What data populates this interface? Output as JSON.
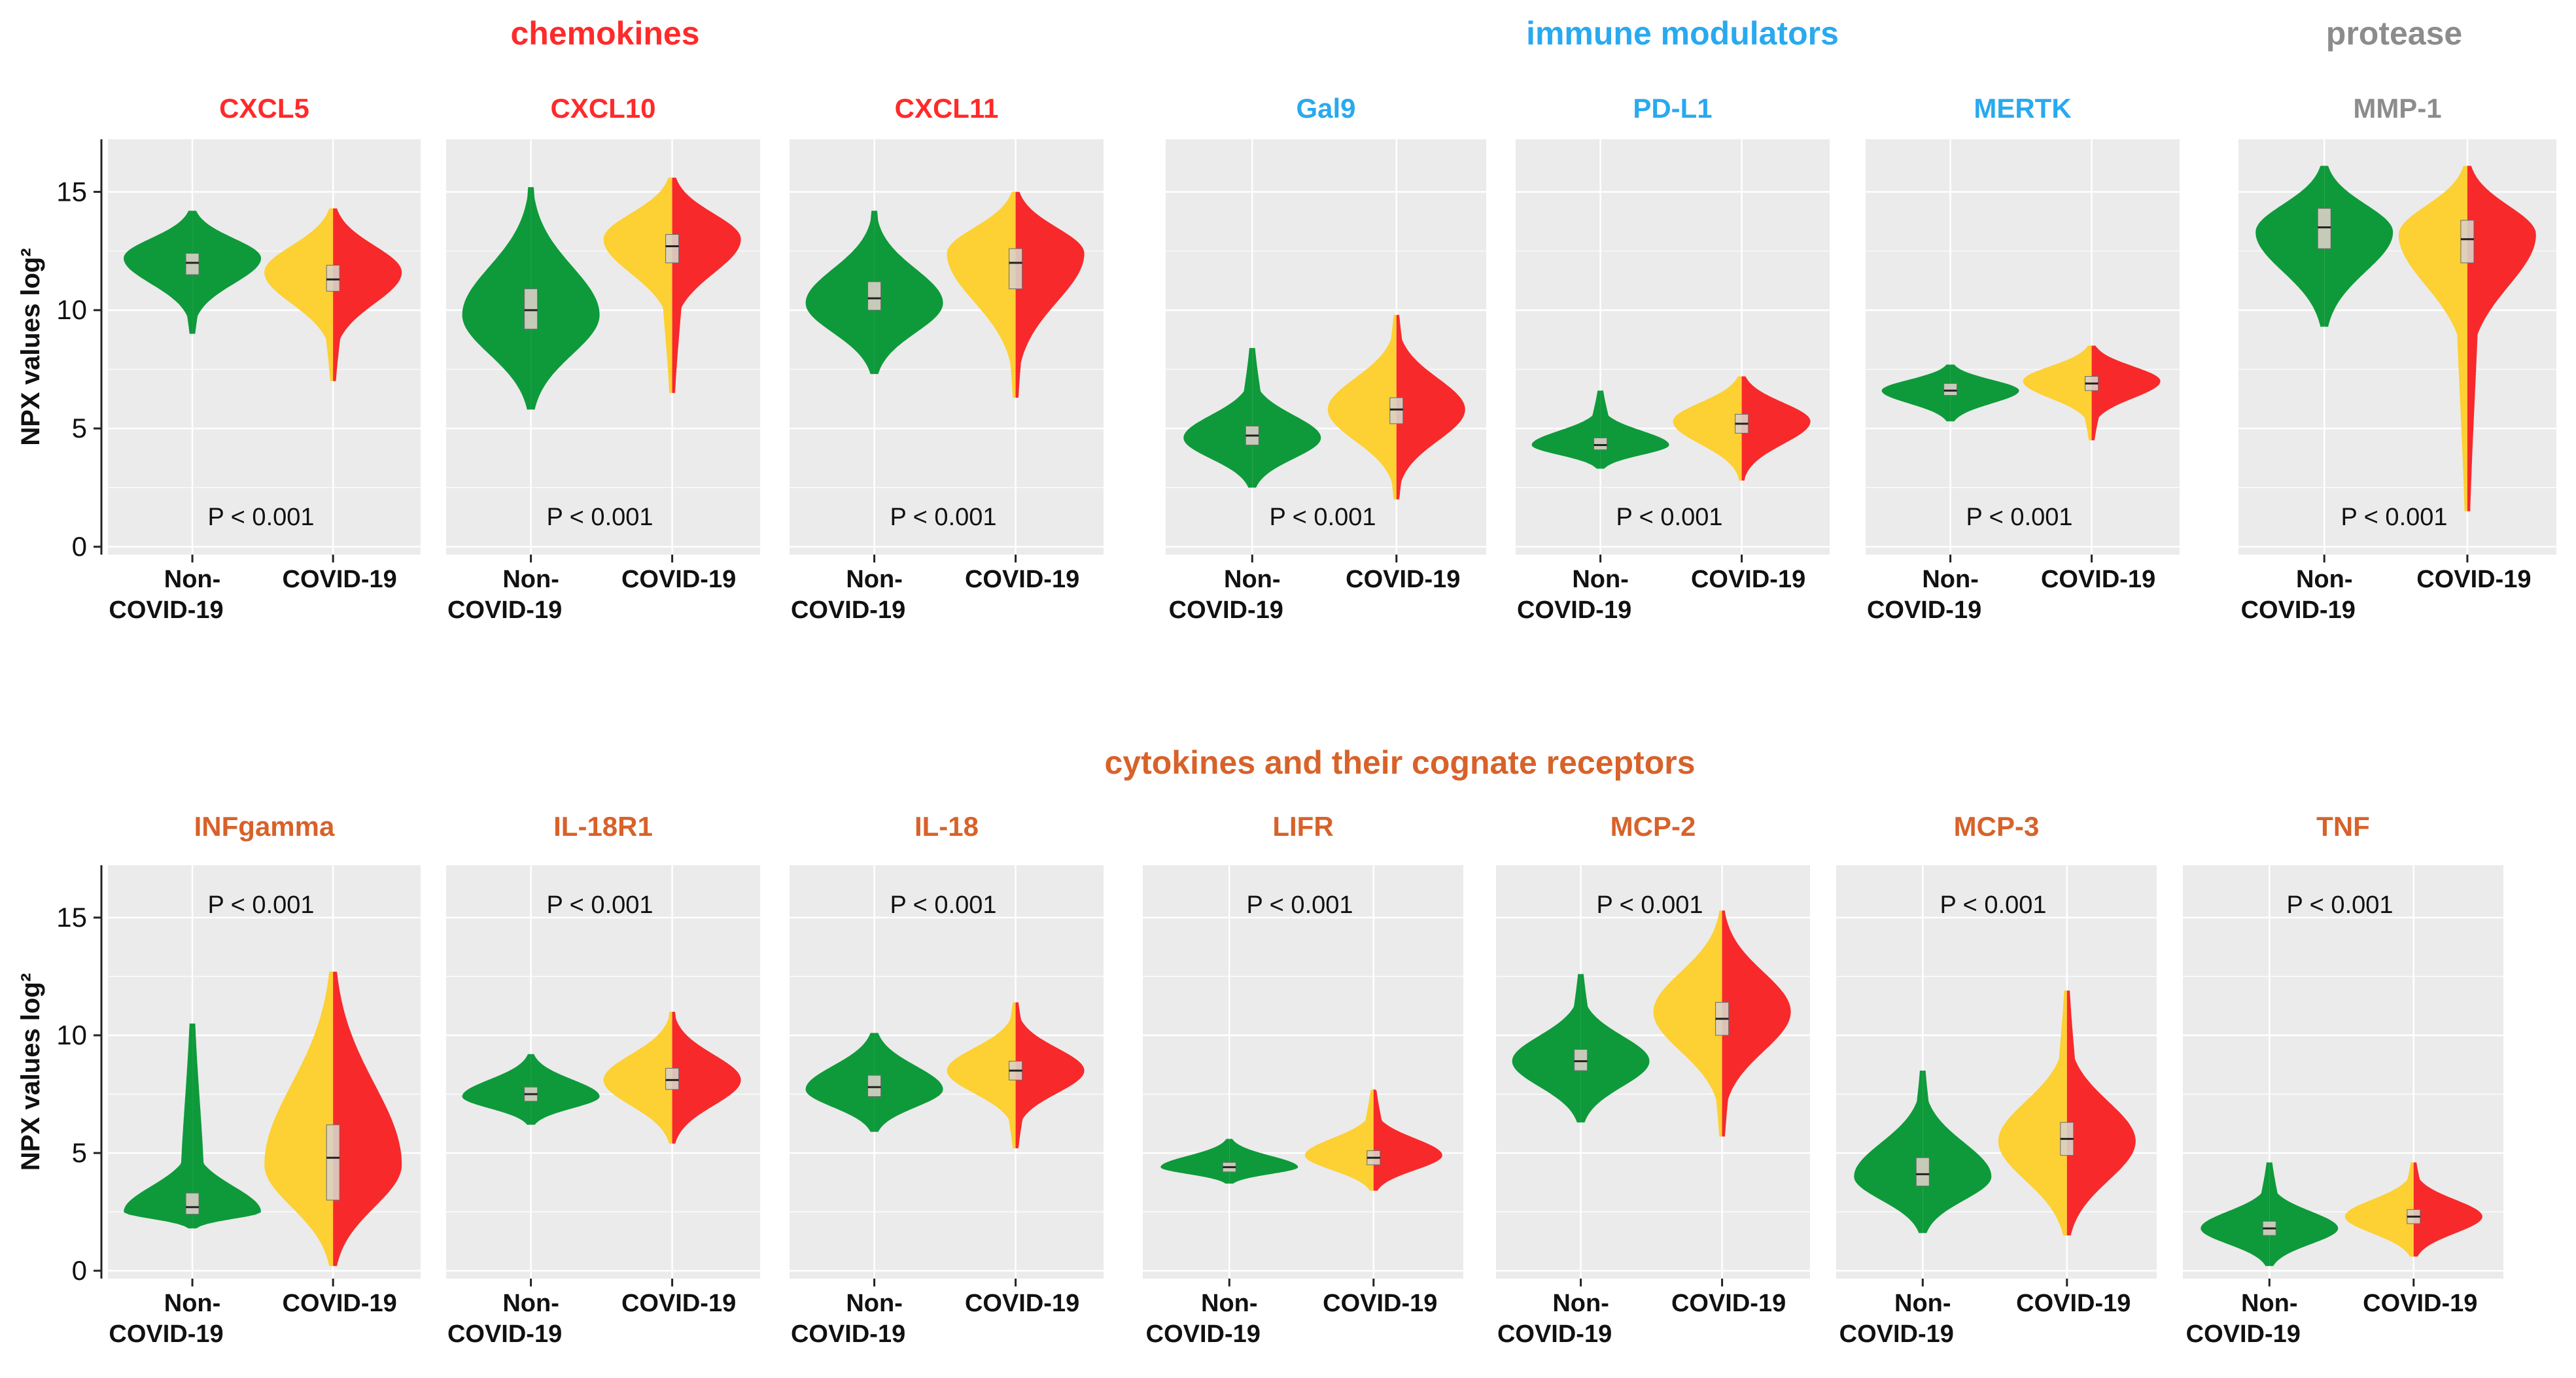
{
  "colors": {
    "non_covid": "#0e9a3a",
    "covid_left": "#fdd033",
    "covid_right": "#f7292b",
    "panel_bg": "#ebebeb",
    "chemokines": "#ff2a2a",
    "immune": "#29a9ef",
    "protease": "#8c8c8c",
    "cytokines": "#d7622a"
  },
  "groups": [
    {
      "key": "chemokines",
      "label": "chemokines",
      "color": "#ff2a2a"
    },
    {
      "key": "immune",
      "label": "immune modulators",
      "color": "#29a9ef"
    },
    {
      "key": "protease",
      "label": "protease",
      "color": "#8c8c8c"
    },
    {
      "key": "cytokines",
      "label": "cytokines and their cognate receptors",
      "color": "#d7622a"
    }
  ],
  "ylabel": "NPX values log²",
  "y_ticks": [
    "0",
    "5",
    "10",
    "15"
  ],
  "x_categories": {
    "non_covid_line1": "Non-",
    "non_covid_line2": "COVID-19",
    "covid": "COVID-19"
  },
  "chart_data": {
    "type": "violin",
    "ylabel": "NPX values log²",
    "ylim": [
      0,
      17
    ],
    "categories": [
      "Non-COVID-19",
      "COVID-19"
    ],
    "panels": [
      {
        "title": "CXCL5",
        "group": "chemokines",
        "pvalue": "P < 0.001",
        "non_covid": {
          "median": 12.0,
          "q1": 11.5,
          "q3": 12.4,
          "min": 9.0,
          "max": 14.2,
          "mode": 12.2
        },
        "covid": {
          "median": 11.3,
          "q1": 10.8,
          "q3": 11.9,
          "min": 7.0,
          "max": 14.3,
          "mode": 11.6
        }
      },
      {
        "title": "CXCL10",
        "group": "chemokines",
        "pvalue": "P < 0.001",
        "non_covid": {
          "median": 10.0,
          "q1": 9.2,
          "q3": 10.9,
          "min": 5.8,
          "max": 15.2,
          "mode": 9.8
        },
        "covid": {
          "median": 12.7,
          "q1": 12.0,
          "q3": 13.2,
          "min": 6.5,
          "max": 15.6,
          "mode": 13.0
        }
      },
      {
        "title": "CXCL11",
        "group": "chemokines",
        "pvalue": "P < 0.001",
        "non_covid": {
          "median": 10.5,
          "q1": 10.0,
          "q3": 11.2,
          "min": 7.3,
          "max": 14.2,
          "mode": 10.3
        },
        "covid": {
          "median": 12.0,
          "q1": 10.9,
          "q3": 12.6,
          "min": 6.3,
          "max": 15.0,
          "mode": 12.4
        }
      },
      {
        "title": "Gal9",
        "group": "immune",
        "pvalue": "P < 0.001",
        "non_covid": {
          "median": 4.7,
          "q1": 4.3,
          "q3": 5.1,
          "min": 2.5,
          "max": 8.4,
          "mode": 4.6
        },
        "covid": {
          "median": 5.8,
          "q1": 5.2,
          "q3": 6.3,
          "min": 2.0,
          "max": 9.8,
          "mode": 5.8
        }
      },
      {
        "title": "PD-L1",
        "group": "immune",
        "pvalue": "P < 0.001",
        "non_covid": {
          "median": 4.3,
          "q1": 4.1,
          "q3": 4.6,
          "min": 3.3,
          "max": 6.6,
          "mode": 4.3
        },
        "covid": {
          "median": 5.2,
          "q1": 4.8,
          "q3": 5.6,
          "min": 2.8,
          "max": 7.2,
          "mode": 5.3
        }
      },
      {
        "title": "MERTK",
        "group": "immune",
        "pvalue": "P < 0.001",
        "non_covid": {
          "median": 6.6,
          "q1": 6.4,
          "q3": 6.9,
          "min": 5.3,
          "max": 7.7,
          "mode": 6.6
        },
        "covid": {
          "median": 6.9,
          "q1": 6.6,
          "q3": 7.2,
          "min": 4.5,
          "max": 8.5,
          "mode": 7.0
        }
      },
      {
        "title": "MMP-1",
        "group": "protease",
        "pvalue": "P < 0.001",
        "non_covid": {
          "median": 13.5,
          "q1": 12.6,
          "q3": 14.3,
          "min": 9.3,
          "max": 16.1,
          "mode": 13.3
        },
        "covid": {
          "median": 13.0,
          "q1": 12.0,
          "q3": 13.8,
          "min": 1.5,
          "max": 16.1,
          "mode": 13.2
        }
      },
      {
        "title": "INFgamma",
        "group": "cytokines",
        "pvalue": "P < 0.001",
        "non_covid": {
          "median": 2.7,
          "q1": 2.4,
          "q3": 3.3,
          "min": 1.8,
          "max": 10.5,
          "mode": 2.5
        },
        "covid": {
          "median": 4.8,
          "q1": 3.0,
          "q3": 6.2,
          "min": 0.2,
          "max": 12.7,
          "mode": 4.5
        }
      },
      {
        "title": "IL-18R1",
        "group": "cytokines",
        "pvalue": "P < 0.001",
        "non_covid": {
          "median": 7.5,
          "q1": 7.2,
          "q3": 7.8,
          "min": 6.2,
          "max": 9.2,
          "mode": 7.4
        },
        "covid": {
          "median": 8.1,
          "q1": 7.7,
          "q3": 8.6,
          "min": 5.4,
          "max": 11.0,
          "mode": 8.1
        }
      },
      {
        "title": "IL-18",
        "group": "cytokines",
        "pvalue": "P < 0.001",
        "non_covid": {
          "median": 7.8,
          "q1": 7.4,
          "q3": 8.3,
          "min": 5.9,
          "max": 10.1,
          "mode": 7.7
        },
        "covid": {
          "median": 8.5,
          "q1": 8.1,
          "q3": 8.9,
          "min": 5.2,
          "max": 11.4,
          "mode": 8.5
        }
      },
      {
        "title": "LIFR",
        "group": "cytokines",
        "pvalue": "P < 0.001",
        "non_covid": {
          "median": 4.4,
          "q1": 4.2,
          "q3": 4.6,
          "min": 3.7,
          "max": 5.6,
          "mode": 4.4
        },
        "covid": {
          "median": 4.8,
          "q1": 4.5,
          "q3": 5.1,
          "min": 3.4,
          "max": 7.7,
          "mode": 4.9
        }
      },
      {
        "title": "MCP-2",
        "group": "cytokines",
        "pvalue": "P < 0.001",
        "non_covid": {
          "median": 8.9,
          "q1": 8.5,
          "q3": 9.4,
          "min": 6.3,
          "max": 12.6,
          "mode": 8.9
        },
        "covid": {
          "median": 10.7,
          "q1": 10.0,
          "q3": 11.4,
          "min": 5.7,
          "max": 15.3,
          "mode": 11.0
        }
      },
      {
        "title": "MCP-3",
        "group": "cytokines",
        "pvalue": "P < 0.001",
        "non_covid": {
          "median": 4.1,
          "q1": 3.6,
          "q3": 4.8,
          "min": 1.6,
          "max": 8.5,
          "mode": 4.0
        },
        "covid": {
          "median": 5.6,
          "q1": 4.9,
          "q3": 6.3,
          "min": 1.5,
          "max": 11.9,
          "mode": 5.5
        }
      },
      {
        "title": "TNF",
        "group": "cytokines",
        "pvalue": "P < 0.001",
        "non_covid": {
          "median": 1.8,
          "q1": 1.5,
          "q3": 2.1,
          "min": 0.2,
          "max": 4.6,
          "mode": 1.8
        },
        "covid": {
          "median": 2.3,
          "q1": 2.0,
          "q3": 2.6,
          "min": 0.6,
          "max": 4.6,
          "mode": 2.3
        }
      }
    ]
  }
}
